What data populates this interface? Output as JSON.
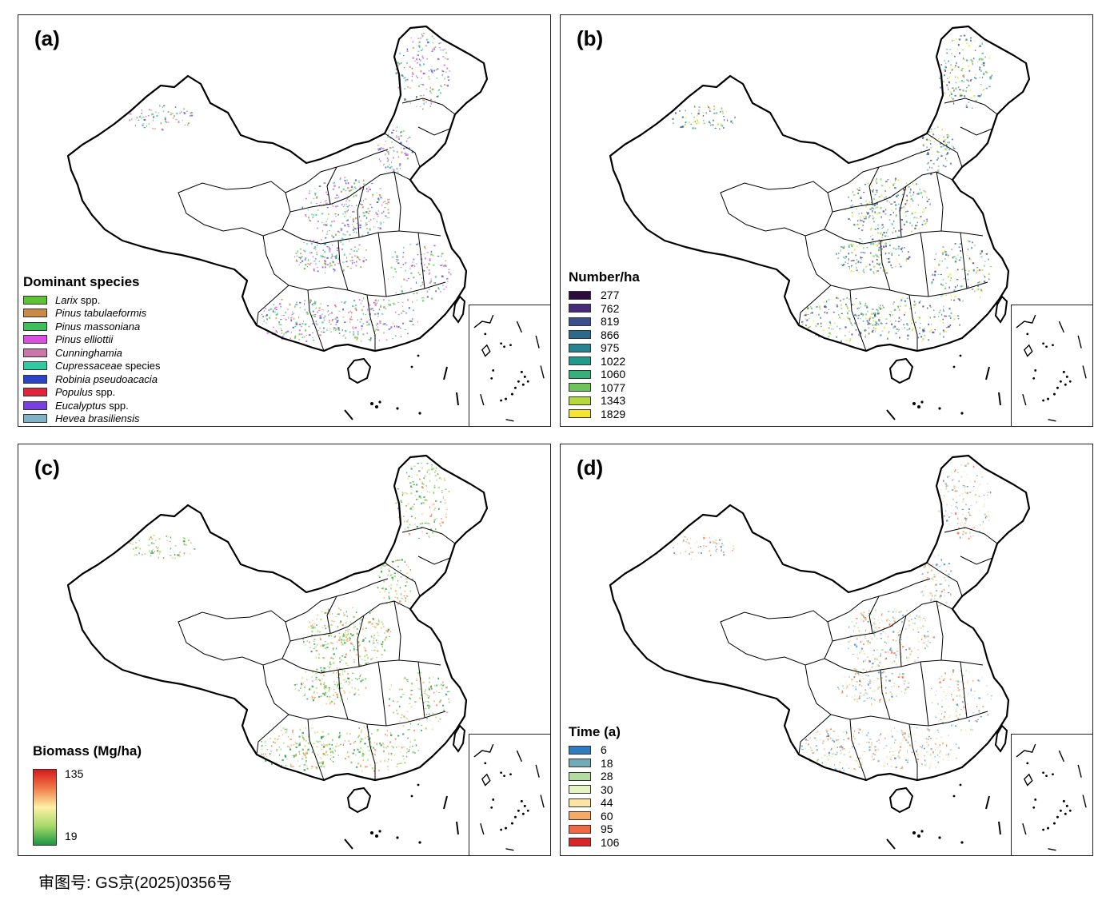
{
  "panels": {
    "a": {
      "label": "(a)",
      "legend_title": "Dominant species",
      "legend_items": [
        {
          "name": "Larix",
          "suffix": " spp.",
          "color": "#5ec235"
        },
        {
          "name": "Pinus tabulaeformis",
          "suffix": "",
          "color": "#c98b45"
        },
        {
          "name": "Pinus massoniana",
          "suffix": "",
          "color": "#3fbf5a"
        },
        {
          "name": "Pinus elliottii",
          "suffix": "",
          "color": "#d94fe0"
        },
        {
          "name": "Cunninghamia",
          "suffix": "",
          "color": "#cc77aa"
        },
        {
          "name": "Cupressaceae",
          "suffix": " species",
          "color": "#2fcaa0"
        },
        {
          "name": "Robinia pseudoacacia",
          "suffix": "",
          "color": "#2b44c7"
        },
        {
          "name": "Populus",
          "suffix": " spp.",
          "color": "#e0253b"
        },
        {
          "name": "Eucalyptus",
          "suffix": " spp.",
          "color": "#7a3fe0"
        },
        {
          "name": "Hevea brasiliensis",
          "suffix": "",
          "color": "#7fb2c8"
        }
      ]
    },
    "b": {
      "label": "(b)",
      "legend_title": "Number/ha",
      "legend_items": [
        {
          "value": "277",
          "color": "#2d0a3e"
        },
        {
          "value": "762",
          "color": "#482a7a"
        },
        {
          "value": "819",
          "color": "#3b4f8f"
        },
        {
          "value": "866",
          "color": "#2e6a8e"
        },
        {
          "value": "975",
          "color": "#25848e"
        },
        {
          "value": "1022",
          "color": "#219a8a"
        },
        {
          "value": "1060",
          "color": "#35b079"
        },
        {
          "value": "1077",
          "color": "#6cc45b"
        },
        {
          "value": "1343",
          "color": "#b6d83a"
        },
        {
          "value": "1829",
          "color": "#f5e431"
        }
      ]
    },
    "c": {
      "label": "(c)",
      "legend_title": "Biomass (Mg/ha)",
      "max_label": "135",
      "min_label": "19"
    },
    "d": {
      "label": "(d)",
      "legend_title": "Time (a)",
      "legend_items": [
        {
          "value": "6",
          "color": "#2f7dc0"
        },
        {
          "value": "18",
          "color": "#73aab8"
        },
        {
          "value": "28",
          "color": "#b3dca0"
        },
        {
          "value": "30",
          "color": "#e6f4c2"
        },
        {
          "value": "44",
          "color": "#fde3a4"
        },
        {
          "value": "60",
          "color": "#f7aa66"
        },
        {
          "value": "95",
          "color": "#ef6a43"
        },
        {
          "value": "106",
          "color": "#d7262a"
        }
      ]
    }
  },
  "footer": "审图号: GS京(2025)0356号"
}
